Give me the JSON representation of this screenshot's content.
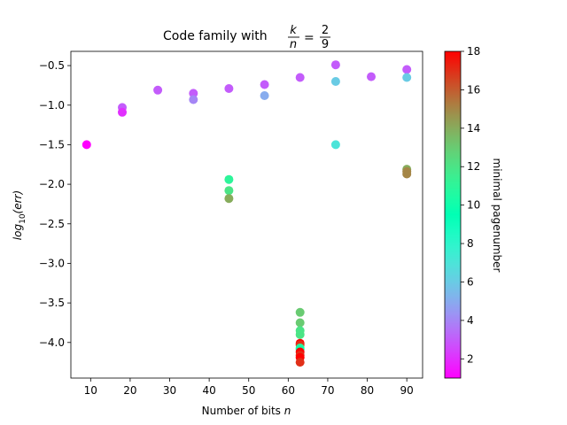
{
  "chart_data": {
    "type": "scatter",
    "title_prefix": "Code family with",
    "title_math": {
      "lhs_num": "k",
      "lhs_den": "n",
      "rhs_num": "2",
      "rhs_den": "9"
    },
    "xlabel_text": "Number of bits",
    "xlabel_var": "n",
    "ylabel_base": "log",
    "ylabel_sub": "10",
    "ylabel_arg": "(err)",
    "colorbar_label": "minimal pagenumber",
    "xlim": [
      5,
      94
    ],
    "ylim": [
      -4.45,
      -0.32
    ],
    "xticks": [
      10,
      20,
      30,
      40,
      50,
      60,
      70,
      80,
      90
    ],
    "yticks": [
      -0.5,
      -1.0,
      -1.5,
      -2.0,
      -2.5,
      -3.0,
      -3.5,
      -4.0
    ],
    "ytick_labels": [
      "−0.5",
      "−1.0",
      "−1.5",
      "−2.0",
      "−2.5",
      "−3.0",
      "−3.5",
      "−4.0"
    ],
    "color_range": [
      1,
      18
    ],
    "colorbar_ticks": [
      2,
      4,
      6,
      8,
      10,
      12,
      14,
      16,
      18
    ],
    "colormap": "rainbow",
    "points": [
      {
        "n": 9,
        "log10_err": -1.5,
        "pagenumber": 1
      },
      {
        "n": 18,
        "log10_err": -1.03,
        "pagenumber": 3
      },
      {
        "n": 18,
        "log10_err": -1.09,
        "pagenumber": 2
      },
      {
        "n": 27,
        "log10_err": -0.81,
        "pagenumber": 3
      },
      {
        "n": 36,
        "log10_err": -0.85,
        "pagenumber": 3
      },
      {
        "n": 36,
        "log10_err": -0.93,
        "pagenumber": 4
      },
      {
        "n": 45,
        "log10_err": -0.79,
        "pagenumber": 3
      },
      {
        "n": 45,
        "log10_err": -1.94,
        "pagenumber": 11
      },
      {
        "n": 45,
        "log10_err": -2.08,
        "pagenumber": 12
      },
      {
        "n": 45,
        "log10_err": -2.18,
        "pagenumber": 14
      },
      {
        "n": 54,
        "log10_err": -0.74,
        "pagenumber": 3
      },
      {
        "n": 54,
        "log10_err": -0.88,
        "pagenumber": 5
      },
      {
        "n": 63,
        "log10_err": -0.65,
        "pagenumber": 3
      },
      {
        "n": 63,
        "log10_err": -3.62,
        "pagenumber": 13
      },
      {
        "n": 63,
        "log10_err": -3.75,
        "pagenumber": 13
      },
      {
        "n": 63,
        "log10_err": -3.85,
        "pagenumber": 12
      },
      {
        "n": 63,
        "log10_err": -3.9,
        "pagenumber": 12
      },
      {
        "n": 63,
        "log10_err": -4.01,
        "pagenumber": 18
      },
      {
        "n": 63,
        "log10_err": -4.03,
        "pagenumber": 17
      },
      {
        "n": 63,
        "log10_err": -4.07,
        "pagenumber": 11
      },
      {
        "n": 63,
        "log10_err": -4.09,
        "pagenumber": 10
      },
      {
        "n": 63,
        "log10_err": -4.12,
        "pagenumber": 18
      },
      {
        "n": 63,
        "log10_err": -4.16,
        "pagenumber": 17
      },
      {
        "n": 63,
        "log10_err": -4.19,
        "pagenumber": 18
      },
      {
        "n": 63,
        "log10_err": -4.25,
        "pagenumber": 17
      },
      {
        "n": 72,
        "log10_err": -0.49,
        "pagenumber": 3
      },
      {
        "n": 72,
        "log10_err": -0.7,
        "pagenumber": 6
      },
      {
        "n": 72,
        "log10_err": -1.5,
        "pagenumber": 7
      },
      {
        "n": 81,
        "log10_err": -0.64,
        "pagenumber": 3
      },
      {
        "n": 90,
        "log10_err": -0.55,
        "pagenumber": 3
      },
      {
        "n": 90,
        "log10_err": -0.65,
        "pagenumber": 6
      },
      {
        "n": 90,
        "log10_err": -1.81,
        "pagenumber": 14
      },
      {
        "n": 90,
        "log10_err": -1.84,
        "pagenumber": 15
      },
      {
        "n": 90,
        "log10_err": -1.87,
        "pagenumber": 15
      }
    ]
  }
}
